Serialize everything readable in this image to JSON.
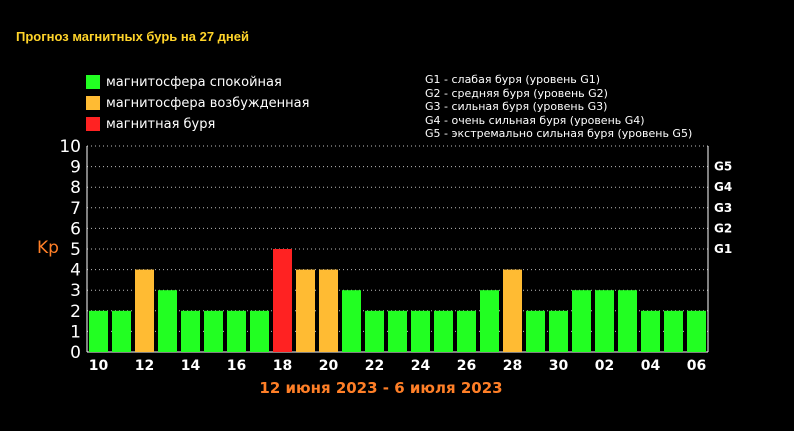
{
  "title": "Прогноз магнитных бурь на 27 дней",
  "legend": [
    {
      "label": "магнитосфера спокойная",
      "color": "#22ff22"
    },
    {
      "label": "магнитосфера возбужденная",
      "color": "#ffbb33"
    },
    {
      "label": "магнитная буря",
      "color": "#ff2222"
    }
  ],
  "g_notes": [
    "G1 - слабая буря (уровень G1)",
    "G2 - средняя буря (уровень G2)",
    "G3 - сильная буря (уровень G3)",
    "G4 - очень сильная буря (уровень G4)",
    "G5 - экстремально сильная буря (уровень G5)"
  ],
  "date_range": "12 июня 2023 - 6 июля 2023",
  "chart_data": {
    "type": "bar",
    "ylabel": "Kp",
    "ylim": [
      0,
      10
    ],
    "y_ticks": [
      "0",
      "1",
      "2",
      "3",
      "4",
      "5",
      "6",
      "7",
      "8",
      "9",
      "10"
    ],
    "right_ticks": [
      {
        "label": "G1",
        "value": 5
      },
      {
        "label": "G2",
        "value": 6
      },
      {
        "label": "G3",
        "value": 7
      },
      {
        "label": "G4",
        "value": 8
      },
      {
        "label": "G5",
        "value": 9
      }
    ],
    "x_labels": [
      "10",
      "",
      "12",
      "",
      "14",
      "",
      "16",
      "",
      "18",
      "",
      "20",
      "",
      "22",
      "",
      "24",
      "",
      "26",
      "",
      "28",
      "",
      "30",
      "",
      "02",
      "",
      "04",
      "",
      "06"
    ],
    "values": [
      2,
      2,
      4,
      3,
      2,
      2,
      2,
      2,
      5,
      4,
      4,
      3,
      2,
      2,
      2,
      2,
      2,
      3,
      4,
      2,
      2,
      3,
      3,
      3,
      2,
      2,
      2
    ],
    "colors": {
      "2": "#22ff22",
      "3": "#22ff22",
      "4": "#ffbb33",
      "5": "#ff2222"
    },
    "grid": true
  }
}
